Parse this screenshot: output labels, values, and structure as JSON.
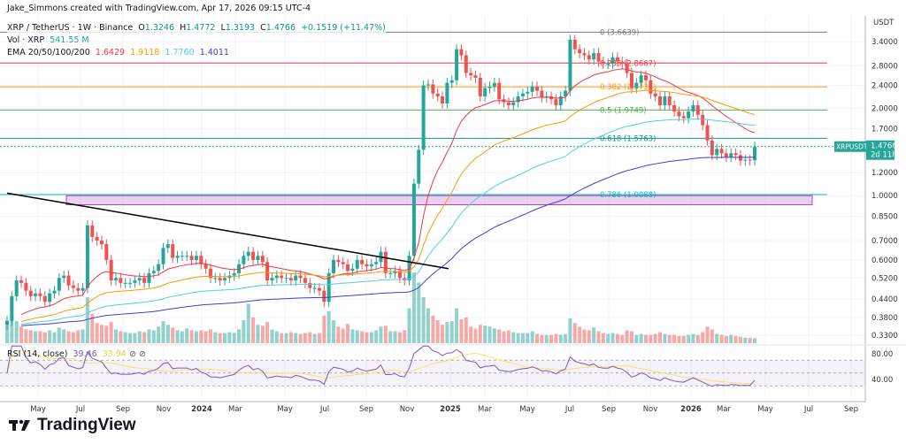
{
  "attribution": "Jake_Simmons created with TradingView.com, Apr 17, 2026 09:15 UTC-4",
  "legend": {
    "symbol": "XRP / TetherUS · 1W · Binance",
    "open_label": "O",
    "open": "1.3246",
    "high_label": "H",
    "high": "1.4772",
    "low_label": "L",
    "low": "1.3193",
    "close_label": "C",
    "close": "1.4766",
    "change": "+0.1519 (+11.47%)",
    "vol_label": "Vol · XRP",
    "vol_value": "541.55 M",
    "ema_label": "EMA 20/50/100/200",
    "ema_values": [
      "1.6429",
      "1.9118",
      "1.7760",
      "1.4011"
    ],
    "rsi_label": "RSI (14, close)",
    "rsi_value": "39.46",
    "rsi_ma_value": "33.94"
  },
  "price_axis": {
    "unit": "USDT",
    "ticks": [
      "3.4000",
      "2.8000",
      "2.4000",
      "2.0000",
      "1.7000",
      "1.2000",
      "1.0000",
      "0.8500",
      "0.7000",
      "0.6000",
      "0.5200",
      "0.4400",
      "0.3800",
      "0.3300"
    ]
  },
  "rsi_axis": {
    "ticks": [
      "80.00",
      "40.00"
    ]
  },
  "last_price_tag": {
    "symbol": "XRPUSDT",
    "price": "1.4766",
    "countdown": "2d 11h"
  },
  "time_axis": [
    "May",
    "Jul",
    "Sep",
    "Nov",
    "2024",
    "Mar",
    "May",
    "Jul",
    "Sep",
    "Nov",
    "2025",
    "Mar",
    "May",
    "Jul",
    "Sep",
    "Nov",
    "2026",
    "Mar",
    "May",
    "Jul",
    "Sep"
  ],
  "colors": {
    "up": "#26a69a",
    "down": "#ef5350",
    "ema20": "#f23645",
    "ema50": "#ff9800",
    "ema100": "#4dd0e1",
    "ema200": "#3f3fcf",
    "rsi": "#7e57c2",
    "rsi_ma": "#f5e663"
  },
  "brand": "TradingView",
  "chart_data": {
    "type": "candlestick",
    "scale": "log",
    "timeframe": "1W",
    "start_week": "2023-03-20",
    "closes": [
      0.37,
      0.45,
      0.51,
      0.5,
      0.47,
      0.45,
      0.46,
      0.45,
      0.43,
      0.46,
      0.47,
      0.52,
      0.53,
      0.49,
      0.48,
      0.47,
      0.48,
      0.79,
      0.72,
      0.7,
      0.68,
      0.6,
      0.51,
      0.52,
      0.5,
      0.5,
      0.5,
      0.51,
      0.52,
      0.5,
      0.54,
      0.55,
      0.58,
      0.66,
      0.68,
      0.61,
      0.62,
      0.62,
      0.62,
      0.6,
      0.62,
      0.58,
      0.56,
      0.52,
      0.52,
      0.51,
      0.52,
      0.53,
      0.54,
      0.58,
      0.62,
      0.64,
      0.6,
      0.62,
      0.59,
      0.51,
      0.52,
      0.53,
      0.52,
      0.52,
      0.51,
      0.53,
      0.52,
      0.5,
      0.48,
      0.48,
      0.47,
      0.43,
      0.54,
      0.6,
      0.59,
      0.58,
      0.55,
      0.56,
      0.6,
      0.58,
      0.57,
      0.58,
      0.59,
      0.64,
      0.54,
      0.54,
      0.55,
      0.52,
      0.51,
      0.62,
      1.1,
      1.44,
      2.4,
      2.42,
      2.25,
      2.2,
      2.08,
      2.45,
      2.5,
      3.2,
      3.05,
      2.65,
      2.6,
      2.55,
      2.2,
      2.35,
      2.38,
      2.45,
      2.15,
      2.1,
      2.05,
      2.1,
      2.2,
      2.25,
      2.28,
      2.38,
      2.3,
      2.18,
      2.2,
      2.15,
      2.05,
      2.2,
      2.3,
      3.45,
      3.2,
      3.1,
      3.05,
      2.95,
      3.1,
      2.9,
      2.85,
      2.85,
      3.0,
      2.9,
      2.85,
      2.65,
      2.35,
      2.45,
      2.6,
      2.5,
      2.25,
      2.2,
      2.05,
      2.2,
      2.05,
      1.95,
      1.88,
      1.85,
      1.95,
      2.05,
      1.9,
      1.75,
      1.55,
      1.38,
      1.45,
      1.4,
      1.36,
      1.4,
      1.38,
      1.32,
      1.33,
      1.3246,
      1.4766
    ],
    "volumes_m": [
      2200,
      2600,
      2400,
      1800,
      1500,
      1400,
      1300,
      1300,
      1200,
      1400,
      1200,
      1700,
      1500,
      1300,
      1200,
      1400,
      1500,
      5000,
      3200,
      2200,
      2000,
      1900,
      2300,
      1500,
      1300,
      1200,
      1100,
      1100,
      1300,
      1200,
      1500,
      1400,
      1800,
      2400,
      2000,
      1700,
      1400,
      1300,
      1600,
      1400,
      1300,
      1400,
      1300,
      1500,
      1200,
      1100,
      1100,
      1200,
      1100,
      1500,
      2500,
      4300,
      2800,
      2000,
      1900,
      2300,
      1500,
      1300,
      1100,
      1100,
      1200,
      1100,
      1000,
      1100,
      1200,
      1000,
      1100,
      3000,
      3500,
      2500,
      1800,
      1600,
      2100,
      1500,
      1400,
      1300,
      1200,
      1200,
      1400,
      1800,
      1900,
      1300,
      1300,
      1200,
      1400,
      3800,
      7700,
      6600,
      5000,
      3800,
      3000,
      2500,
      2000,
      2300,
      2400,
      3800,
      2600,
      2800,
      1800,
      1600,
      2000,
      1900,
      1800,
      1600,
      1500,
      1300,
      1400,
      1200,
      1100,
      1100,
      1100,
      1300,
      1000,
      900,
      900,
      900,
      1000,
      900,
      1000,
      2700,
      2200,
      1800,
      1500,
      1400,
      1700,
      1300,
      1100,
      1000,
      1100,
      1000,
      900,
      1400,
      1300,
      900,
      1000,
      900,
      900,
      1000,
      1200,
      1000,
      900,
      900,
      800,
      800,
      900,
      1000,
      900,
      1200,
      1800,
      1500,
      1000,
      900,
      800,
      900,
      800,
      700,
      600,
      600,
      541.55
    ],
    "fib_levels": [
      {
        "label": "0 (3.6639)",
        "value": 3.6639,
        "color": "#787b86"
      },
      {
        "label": "0.236 (2.8667)",
        "value": 2.8667,
        "color": "#f23645"
      },
      {
        "label": "0.382 (2.3735)",
        "value": 2.3735,
        "color": "#ff9800"
      },
      {
        "label": "0.5 (1.9749)",
        "value": 1.9749,
        "color": "#4caf50"
      },
      {
        "label": "0.618 (1.5763)",
        "value": 1.5763,
        "color": "#089981"
      },
      {
        "label": "0.786 (1.0088)",
        "value": 1.0088,
        "color": "#00bcd4"
      }
    ],
    "support_zone": [
      0.93,
      1.0
    ],
    "trendline": [
      {
        "date": "2023-03-20",
        "price": 1.02
      },
      {
        "date": "2025-02-17",
        "price": 0.56
      }
    ],
    "ylim": [
      0.32,
      3.7
    ],
    "rsi_ylim": [
      20,
      95
    ]
  }
}
